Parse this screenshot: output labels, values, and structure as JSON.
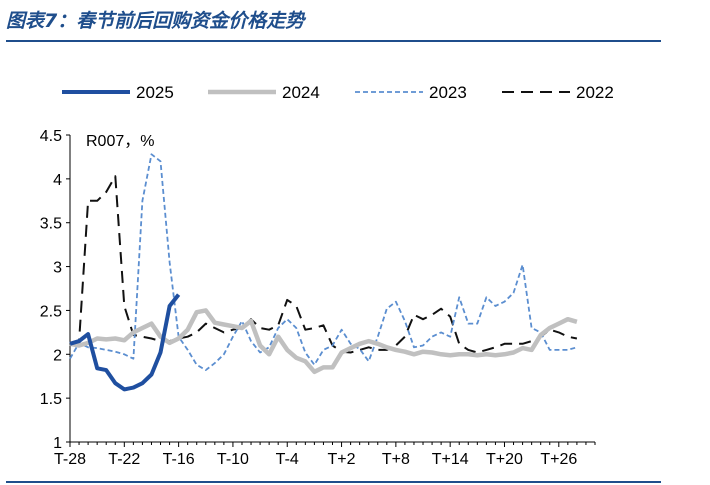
{
  "figure": {
    "title": "图表7：春节前后回购资金价格走势"
  },
  "chart_data": {
    "type": "line",
    "title": "",
    "unit_label": "R007，%",
    "xlabel": "",
    "ylabel": "",
    "ylim": [
      1,
      4.5
    ],
    "y_ticks": [
      "1",
      "1.5",
      "2",
      "2.5",
      "3",
      "3.5",
      "4",
      "4.5"
    ],
    "x_range": [
      -28,
      30
    ],
    "x_ticks": [
      "T-28",
      "T-22",
      "T-16",
      "T-10",
      "T-4",
      "T+2",
      "T+8",
      "T+14",
      "T+20",
      "T+26"
    ],
    "grid": false,
    "legend": "top",
    "series": [
      {
        "name": "2025",
        "color": "#1f4fa0",
        "style": "solid-thick",
        "points": [
          [
            -28,
            2.12
          ],
          [
            -27,
            2.15
          ],
          [
            -26,
            2.23
          ],
          [
            -25,
            1.84
          ],
          [
            -24,
            1.82
          ],
          [
            -23,
            1.67
          ],
          [
            -22,
            1.6
          ],
          [
            -21,
            1.62
          ],
          [
            -20,
            1.67
          ],
          [
            -19,
            1.77
          ],
          [
            -18,
            2.02
          ],
          [
            -17,
            2.55
          ],
          [
            -16,
            2.68
          ]
        ]
      },
      {
        "name": "2024",
        "color": "#c0c0c0",
        "style": "solid-thick",
        "points": [
          [
            -28,
            2.12
          ],
          [
            -27,
            2.1
          ],
          [
            -26,
            2.13
          ],
          [
            -25,
            2.18
          ],
          [
            -24,
            2.17
          ],
          [
            -23,
            2.18
          ],
          [
            -22,
            2.16
          ],
          [
            -21,
            2.25
          ],
          [
            -20,
            2.3
          ],
          [
            -19,
            2.35
          ],
          [
            -18,
            2.2
          ],
          [
            -17,
            2.13
          ],
          [
            -16,
            2.18
          ],
          [
            -15,
            2.28
          ],
          [
            -14,
            2.48
          ],
          [
            -13,
            2.5
          ],
          [
            -12,
            2.36
          ],
          [
            -11,
            2.34
          ],
          [
            -10,
            2.32
          ],
          [
            -9,
            2.3
          ],
          [
            -8,
            2.38
          ],
          [
            -7,
            2.1
          ],
          [
            -6,
            2.0
          ],
          [
            -5,
            2.2
          ],
          [
            -4,
            2.05
          ],
          [
            -3,
            1.96
          ],
          [
            -2,
            1.92
          ],
          [
            -1,
            1.8
          ],
          [
            0,
            1.85
          ],
          [
            1,
            1.85
          ],
          [
            2,
            2.02
          ],
          [
            3,
            2.07
          ],
          [
            4,
            2.12
          ],
          [
            5,
            2.15
          ],
          [
            6,
            2.12
          ],
          [
            7,
            2.08
          ],
          [
            8,
            2.05
          ],
          [
            9,
            2.03
          ],
          [
            10,
            2.0
          ],
          [
            11,
            2.03
          ],
          [
            12,
            2.02
          ],
          [
            13,
            2.0
          ],
          [
            14,
            1.99
          ],
          [
            15,
            2.0
          ],
          [
            16,
            2.0
          ],
          [
            17,
            1.99
          ],
          [
            18,
            2.0
          ],
          [
            19,
            1.99
          ],
          [
            20,
            2.0
          ],
          [
            21,
            2.02
          ],
          [
            22,
            2.07
          ],
          [
            23,
            2.05
          ],
          [
            24,
            2.22
          ],
          [
            25,
            2.3
          ],
          [
            26,
            2.35
          ],
          [
            27,
            2.4
          ],
          [
            28,
            2.37
          ]
        ]
      },
      {
        "name": "2023",
        "color": "#5b8ed0",
        "style": "dashed-short",
        "points": [
          [
            -28,
            1.95
          ],
          [
            -27,
            2.13
          ],
          [
            -26,
            2.08
          ],
          [
            -25,
            2.07
          ],
          [
            -24,
            2.05
          ],
          [
            -23,
            2.03
          ],
          [
            -22,
            2.0
          ],
          [
            -21,
            1.95
          ],
          [
            -20,
            3.75
          ],
          [
            -19,
            4.28
          ],
          [
            -18,
            4.2
          ],
          [
            -17,
            3.05
          ],
          [
            -16,
            2.2
          ],
          [
            -15,
            2.05
          ],
          [
            -14,
            1.88
          ],
          [
            -13,
            1.82
          ],
          [
            -12,
            1.9
          ],
          [
            -11,
            2.0
          ],
          [
            -10,
            2.2
          ],
          [
            -9,
            2.38
          ],
          [
            -8,
            2.15
          ],
          [
            -7,
            2.02
          ],
          [
            -6,
            2.08
          ],
          [
            -5,
            2.3
          ],
          [
            -4,
            2.4
          ],
          [
            -3,
            2.3
          ],
          [
            -2,
            2.02
          ],
          [
            -1,
            1.88
          ],
          [
            0,
            2.05
          ],
          [
            1,
            2.1
          ],
          [
            2,
            2.28
          ],
          [
            3,
            2.12
          ],
          [
            4,
            2.06
          ],
          [
            5,
            1.92
          ],
          [
            6,
            2.2
          ],
          [
            7,
            2.52
          ],
          [
            8,
            2.6
          ],
          [
            9,
            2.38
          ],
          [
            10,
            2.08
          ],
          [
            11,
            2.1
          ],
          [
            12,
            2.2
          ],
          [
            13,
            2.25
          ],
          [
            14,
            2.2
          ],
          [
            15,
            2.65
          ],
          [
            16,
            2.35
          ],
          [
            17,
            2.35
          ],
          [
            18,
            2.65
          ],
          [
            19,
            2.55
          ],
          [
            20,
            2.6
          ],
          [
            21,
            2.7
          ],
          [
            22,
            3.02
          ],
          [
            23,
            2.3
          ],
          [
            24,
            2.25
          ],
          [
            25,
            2.05
          ],
          [
            26,
            2.05
          ],
          [
            27,
            2.05
          ],
          [
            28,
            2.08
          ]
        ]
      },
      {
        "name": "2022",
        "color": "#111111",
        "style": "dashed-long",
        "points": [
          [
            -28,
            2.12
          ],
          [
            -27,
            2.15
          ],
          [
            -26,
            3.75
          ],
          [
            -25,
            3.75
          ],
          [
            -24,
            3.85
          ],
          [
            -23,
            4.03
          ],
          [
            -22,
            2.55
          ],
          [
            -21,
            2.22
          ],
          [
            -20,
            2.2
          ],
          [
            -19,
            2.18
          ],
          [
            -18,
            2.15
          ],
          [
            -17,
            2.15
          ],
          [
            -16,
            2.18
          ],
          [
            -15,
            2.2
          ],
          [
            -14,
            2.25
          ],
          [
            -13,
            2.35
          ],
          [
            -12,
            2.3
          ],
          [
            -11,
            2.25
          ],
          [
            -10,
            2.28
          ],
          [
            -9,
            2.3
          ],
          [
            -8,
            2.4
          ],
          [
            -7,
            2.3
          ],
          [
            -6,
            2.28
          ],
          [
            -5,
            2.33
          ],
          [
            -4,
            2.62
          ],
          [
            -3,
            2.55
          ],
          [
            -2,
            2.28
          ],
          [
            -1,
            2.3
          ],
          [
            0,
            2.33
          ],
          [
            1,
            2.1
          ],
          [
            2,
            2.03
          ],
          [
            3,
            2.02
          ],
          [
            4,
            2.05
          ],
          [
            5,
            2.08
          ],
          [
            6,
            2.05
          ],
          [
            7,
            2.05
          ],
          [
            8,
            2.1
          ],
          [
            9,
            2.2
          ],
          [
            10,
            2.45
          ],
          [
            11,
            2.4
          ],
          [
            12,
            2.45
          ],
          [
            13,
            2.52
          ],
          [
            14,
            2.43
          ],
          [
            15,
            2.12
          ],
          [
            16,
            2.05
          ],
          [
            17,
            2.02
          ],
          [
            18,
            2.05
          ],
          [
            19,
            2.08
          ],
          [
            20,
            2.12
          ],
          [
            21,
            2.12
          ],
          [
            22,
            2.12
          ],
          [
            23,
            2.15
          ],
          [
            24,
            2.2
          ],
          [
            25,
            2.28
          ],
          [
            26,
            2.25
          ],
          [
            27,
            2.2
          ],
          [
            28,
            2.18
          ]
        ]
      }
    ]
  }
}
